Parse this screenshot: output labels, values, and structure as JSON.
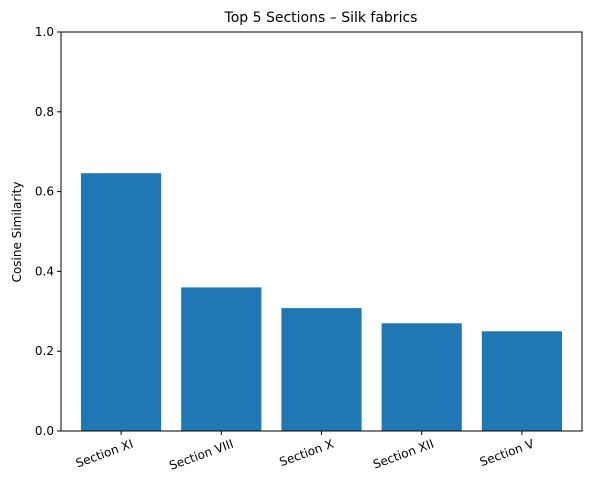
{
  "chart_data": {
    "type": "bar",
    "title": "Top 5 Sections – Silk fabrics",
    "xlabel": "",
    "ylabel": "Cosine Similarity",
    "categories": [
      "Section XI",
      "Section VIII",
      "Section X",
      "Section XII",
      "Section V"
    ],
    "values": [
      0.646,
      0.36,
      0.308,
      0.27,
      0.25
    ],
    "ylim": [
      0,
      1
    ],
    "yticks": [
      "0.0",
      "0.2",
      "0.4",
      "0.6",
      "0.8",
      "1.0"
    ],
    "grid": false,
    "legend": "none",
    "bar_color": "#1f77b4"
  }
}
